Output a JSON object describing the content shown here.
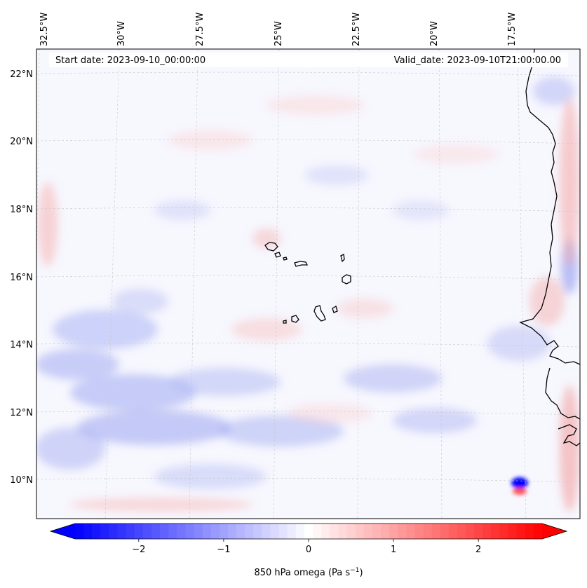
{
  "map": {
    "start_date_label": "Start date: 2023-09-10_00:00:00",
    "valid_date_label": "Valid_date: 2023-09-10T21:00:00.00",
    "lon_ticks": [
      "32.5°W",
      "30°W",
      "27.5°W",
      "25°W",
      "22.5°W",
      "20°W",
      "17.5°W"
    ],
    "lat_ticks": [
      "22°N",
      "20°N",
      "18°N",
      "16°N",
      "14°N",
      "12°N",
      "10°N"
    ],
    "gridlines": true,
    "coastline_color": "#000000",
    "field_colors": {
      "negative": "#0000ff",
      "neutral": "#ffffff",
      "positive": "#ff0000"
    }
  },
  "colorbar": {
    "label_main": "850 hPa omega (Pa s",
    "label_exponent": "−1",
    "label_close": ")",
    "ticks": [
      "−2",
      "−1",
      "0",
      "1",
      "2"
    ],
    "tick_values": [
      -2,
      -1,
      0,
      1,
      2
    ],
    "vmin": -2.75,
    "vmax": 2.75,
    "levels": 55,
    "extend": "both"
  }
}
